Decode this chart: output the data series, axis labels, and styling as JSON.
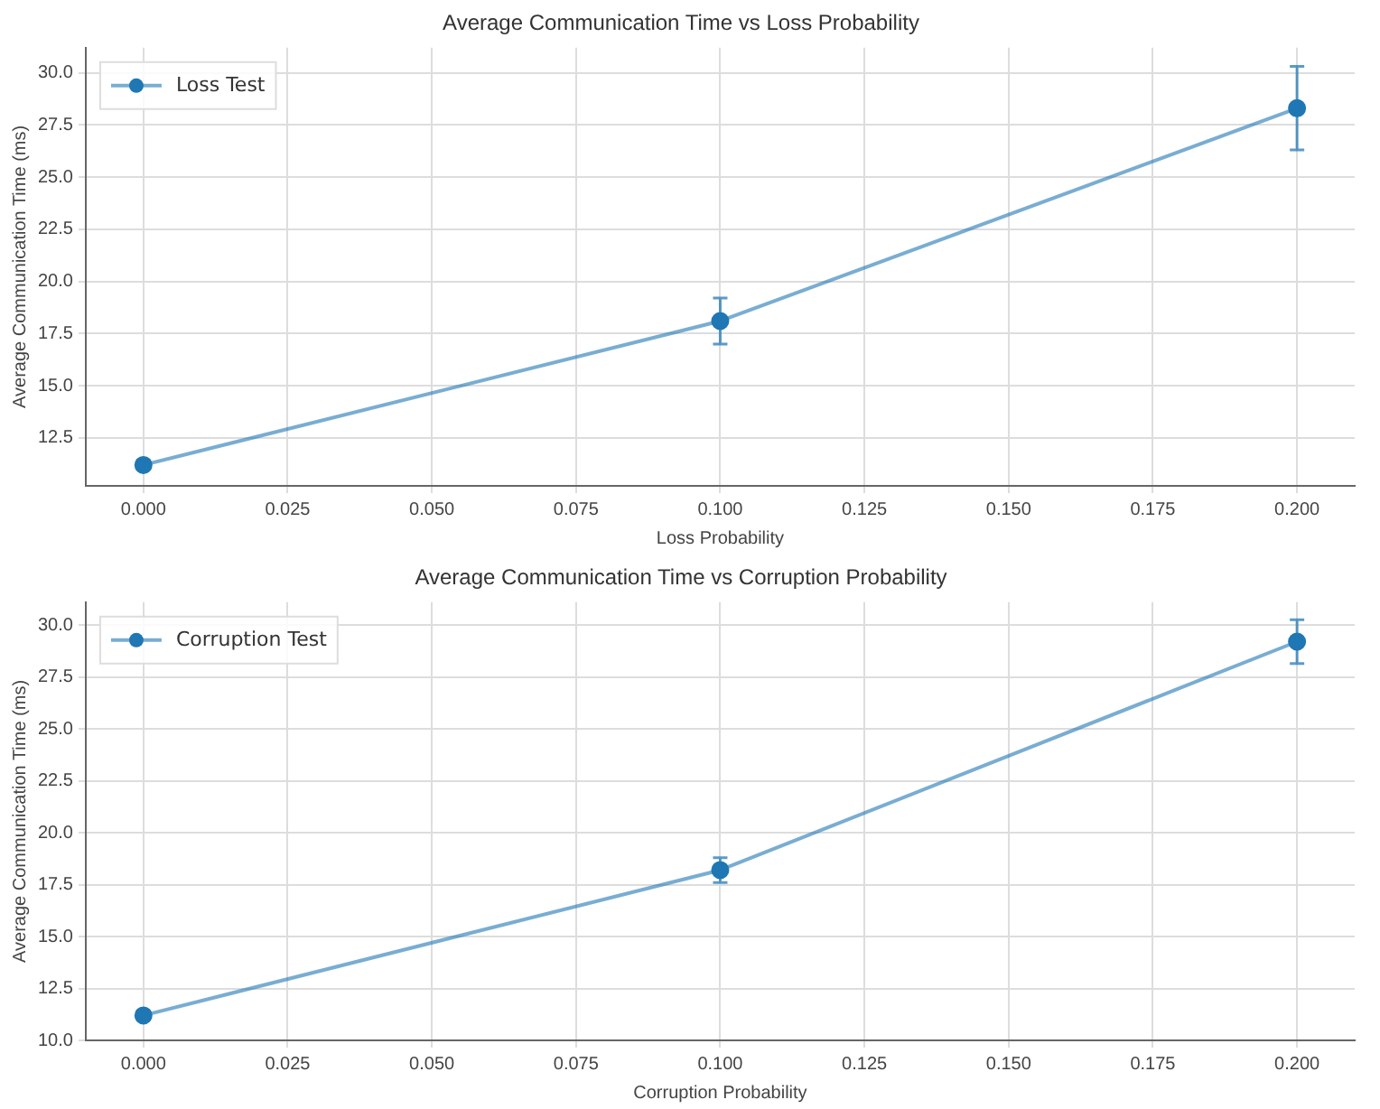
{
  "chart_data": [
    {
      "type": "line",
      "title": "Average Communication Time vs Loss Probability",
      "xlabel": "Loss Probability",
      "ylabel": "Average Communication Time (ms)",
      "x": [
        0,
        0.1,
        0.2
      ],
      "series": [
        {
          "name": "Loss Test",
          "color": "#1f77b4",
          "values": [
            11.2,
            18.1,
            28.3
          ],
          "errors": [
            0.2,
            1.1,
            2.0
          ]
        }
      ],
      "xlim": [
        -0.01,
        0.21
      ],
      "ylim": [
        10.2,
        31.2
      ],
      "xticks": [
        {
          "value": 0,
          "label": "0.000"
        },
        {
          "value": 0.025,
          "label": "0.025"
        },
        {
          "value": 0.05,
          "label": "0.050"
        },
        {
          "value": 0.075,
          "label": "0.075"
        },
        {
          "value": 0.1,
          "label": "0.100"
        },
        {
          "value": 0.125,
          "label": "0.125"
        },
        {
          "value": 0.15,
          "label": "0.150"
        },
        {
          "value": 0.175,
          "label": "0.175"
        },
        {
          "value": 0.2,
          "label": "0.200"
        }
      ],
      "yticks": [
        12.5,
        {
          "value": 15,
          "label": "15.0"
        },
        17.5,
        {
          "value": 20,
          "label": "20.0"
        },
        22.5,
        {
          "value": 25,
          "label": "25.0"
        },
        27.5,
        {
          "value": 30,
          "label": "30.0"
        }
      ],
      "grid": true,
      "legend": "top left",
      "marker": "circle",
      "line_style": "solid"
    },
    {
      "type": "line",
      "title": "Average Communication Time vs Corruption Probability",
      "xlabel": "Corruption Probability",
      "ylabel": "Average Communication Time (ms)",
      "x": [
        0,
        0.1,
        0.2
      ],
      "series": [
        {
          "name": "Corruption Test",
          "color": "#1f77b4",
          "values": [
            11.2,
            18.2,
            29.2
          ],
          "errors": [
            0.2,
            0.6,
            1.05
          ]
        }
      ],
      "xlim": [
        -0.01,
        0.21
      ],
      "ylim": [
        10,
        31.1
      ],
      "xticks": [
        {
          "value": 0,
          "label": "0.000"
        },
        {
          "value": 0.025,
          "label": "0.025"
        },
        {
          "value": 0.05,
          "label": "0.050"
        },
        {
          "value": 0.075,
          "label": "0.075"
        },
        {
          "value": 0.1,
          "label": "0.100"
        },
        {
          "value": 0.125,
          "label": "0.125"
        },
        {
          "value": 0.15,
          "label": "0.150"
        },
        {
          "value": 0.175,
          "label": "0.175"
        },
        {
          "value": 0.2,
          "label": "0.200"
        }
      ],
      "yticks": [
        {
          "value": 10,
          "label": "10.0"
        },
        12.5,
        {
          "value": 15,
          "label": "15.0"
        },
        17.5,
        {
          "value": 20,
          "label": "20.0"
        },
        22.5,
        {
          "value": 25,
          "label": "25.0"
        },
        27.5,
        {
          "value": 30,
          "label": "30.0"
        }
      ],
      "grid": true,
      "legend": "top left",
      "marker": "circle",
      "line_style": "solid"
    }
  ]
}
